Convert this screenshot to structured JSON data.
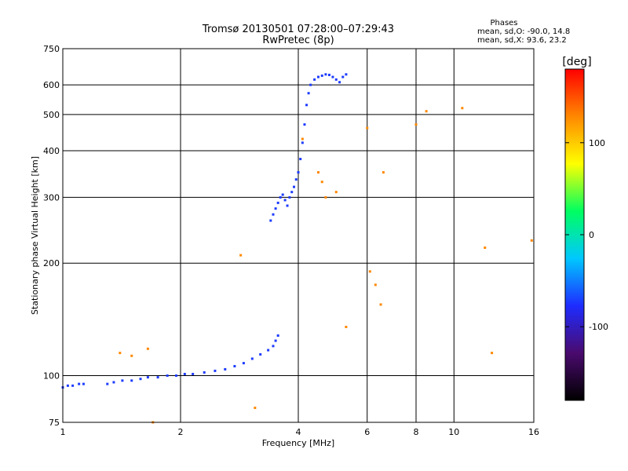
{
  "header": {
    "title": "Tromsø 20130501 07:28:00–07:29:43",
    "subtitle": "RwPretec (8p)",
    "stats_title": "Phases",
    "stats_o": "mean, sd,O: -90.0, 14.8",
    "stats_x": "mean, sd,X:  93.6, 23.2"
  },
  "chart_data": {
    "type": "scatter",
    "xlabel": "Frequency [MHz]",
    "ylabel": "Stationary phase Virtual Height [km]",
    "x_scale": "log",
    "y_scale": "log",
    "xlim": [
      1,
      16
    ],
    "ylim": [
      75,
      750
    ],
    "x_ticks": [
      1,
      2,
      4,
      6,
      8,
      10,
      16
    ],
    "y_ticks": [
      75,
      100,
      200,
      300,
      400,
      500,
      600,
      750
    ],
    "grid": true,
    "colorbar": {
      "label": "[deg]",
      "range": [
        -180,
        180
      ],
      "ticks": [
        100,
        0,
        -100
      ],
      "colors": [
        "#000000",
        "#4a0a6e",
        "#1e2cff",
        "#00c8ff",
        "#00ff60",
        "#ffff00",
        "#ff8800",
        "#ff0000"
      ]
    },
    "series": [
      {
        "trace": "O-mode ionogram trace",
        "color": "#1e3cff",
        "points": [
          [
            1.0,
            93
          ],
          [
            1.03,
            94
          ],
          [
            1.06,
            94
          ],
          [
            1.1,
            95
          ],
          [
            1.13,
            95
          ],
          [
            1.3,
            95
          ],
          [
            1.35,
            96
          ],
          [
            1.42,
            97
          ],
          [
            1.5,
            97
          ],
          [
            1.58,
            98
          ],
          [
            1.65,
            99
          ],
          [
            1.75,
            99
          ],
          [
            1.85,
            100
          ],
          [
            1.95,
            100
          ],
          [
            2.05,
            101
          ],
          [
            2.15,
            101
          ],
          [
            2.3,
            102
          ],
          [
            2.45,
            103
          ],
          [
            2.6,
            104
          ],
          [
            2.75,
            106
          ],
          [
            2.9,
            108
          ],
          [
            3.05,
            111
          ],
          [
            3.2,
            114
          ],
          [
            3.35,
            117
          ],
          [
            3.45,
            120
          ],
          [
            3.5,
            124
          ],
          [
            3.55,
            128
          ],
          [
            3.4,
            260
          ],
          [
            3.45,
            270
          ],
          [
            3.5,
            280
          ],
          [
            3.55,
            290
          ],
          [
            3.6,
            300
          ],
          [
            3.65,
            305
          ],
          [
            3.7,
            295
          ],
          [
            3.75,
            285
          ],
          [
            3.8,
            300
          ],
          [
            3.85,
            310
          ],
          [
            3.9,
            320
          ],
          [
            3.95,
            335
          ],
          [
            4.0,
            350
          ],
          [
            4.05,
            380
          ],
          [
            4.1,
            420
          ],
          [
            4.15,
            470
          ],
          [
            4.2,
            530
          ],
          [
            4.25,
            570
          ],
          [
            4.3,
            600
          ],
          [
            4.4,
            620
          ],
          [
            4.5,
            630
          ],
          [
            4.6,
            635
          ],
          [
            4.7,
            640
          ],
          [
            4.8,
            638
          ],
          [
            4.9,
            630
          ],
          [
            5.0,
            620
          ],
          [
            5.1,
            610
          ],
          [
            5.2,
            630
          ],
          [
            5.3,
            640
          ]
        ]
      },
      {
        "trace": "scattered colored echoes",
        "color": "#ff8800",
        "points": [
          [
            1.4,
            115
          ],
          [
            1.5,
            113
          ],
          [
            1.65,
            118
          ],
          [
            1.7,
            75
          ],
          [
            2.85,
            210
          ],
          [
            3.1,
            82
          ],
          [
            4.1,
            430
          ],
          [
            4.5,
            350
          ],
          [
            4.6,
            330
          ],
          [
            4.7,
            300
          ],
          [
            5.0,
            310
          ],
          [
            5.3,
            135
          ],
          [
            6.0,
            460
          ],
          [
            6.1,
            190
          ],
          [
            6.3,
            175
          ],
          [
            6.5,
            155
          ],
          [
            6.6,
            350
          ],
          [
            8.0,
            470
          ],
          [
            8.5,
            510
          ],
          [
            10.5,
            520
          ],
          [
            12.0,
            220
          ],
          [
            12.5,
            115
          ],
          [
            15.8,
            230
          ]
        ]
      }
    ]
  }
}
